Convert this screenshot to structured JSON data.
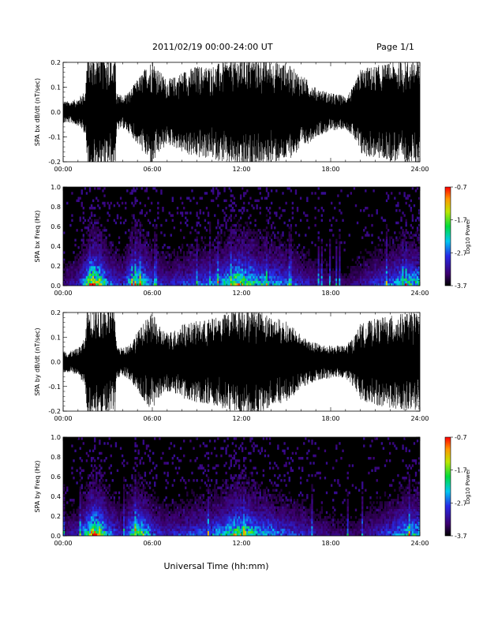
{
  "header": {
    "title": "2011/02/19   00:00-24:00 UT",
    "page": "Page 1/1"
  },
  "footer": {
    "xlabel": "Universal Time (hh:mm)"
  },
  "chart_data": [
    {
      "type": "line",
      "ylabel": "SPA bx dB/dt (nT/sec)",
      "xlabel": "",
      "xlim": [
        "00:00",
        "24:00"
      ],
      "x_ticks": [
        "00:00",
        "06:00",
        "12:00",
        "18:00",
        "24:00"
      ],
      "ylim": [
        -0.2,
        0.2
      ],
      "y_ticks": [
        "-0.2",
        "-0.1",
        "0.0",
        "0.1",
        "0.2"
      ],
      "color": "#000000",
      "envelope": {
        "x_hours": [
          0,
          0.5,
          1,
          1.5,
          1.6,
          2,
          2.5,
          3,
          3.5,
          3.6,
          4,
          4.5,
          5,
          5.5,
          6,
          6.5,
          7,
          7.5,
          8,
          9,
          10,
          11,
          12,
          13,
          14,
          15,
          16,
          17,
          18,
          19,
          19.5,
          20,
          21,
          22,
          23,
          24
        ],
        "amplitude": [
          0.04,
          0.04,
          0.05,
          0.08,
          0.21,
          0.21,
          0.21,
          0.21,
          0.2,
          0.07,
          0.06,
          0.08,
          0.12,
          0.16,
          0.2,
          0.15,
          0.12,
          0.13,
          0.15,
          0.17,
          0.17,
          0.19,
          0.21,
          0.2,
          0.19,
          0.18,
          0.14,
          0.09,
          0.07,
          0.06,
          0.09,
          0.16,
          0.17,
          0.18,
          0.19,
          0.2
        ]
      }
    },
    {
      "type": "heatmap",
      "ylabel": "SPA bx Freq (Hz)",
      "xlim": [
        "00:00",
        "24:00"
      ],
      "x_ticks": [
        "00:00",
        "06:00",
        "12:00",
        "18:00",
        "24:00"
      ],
      "ylim": [
        0.0,
        1.0
      ],
      "y_ticks": [
        "0.0",
        "0.2",
        "0.4",
        "0.6",
        "0.8",
        "1.0"
      ],
      "colorbar": {
        "label": "Log10 Power",
        "ticks": [
          "-0.7",
          "-1.7",
          "-2.7",
          "-3.7"
        ],
        "range": [
          -3.7,
          -0.7
        ]
      },
      "activity": {
        "x_hours": [
          0,
          1,
          1.5,
          2,
          2.5,
          3,
          4,
          4.5,
          5,
          5.5,
          6,
          7,
          8,
          9,
          10,
          11,
          11.5,
          12,
          12.5,
          13,
          14,
          15,
          16,
          17,
          18,
          19,
          20,
          21,
          22,
          23,
          24
        ],
        "level": [
          0.15,
          0.25,
          0.55,
          0.95,
          0.8,
          0.45,
          0.25,
          0.55,
          0.7,
          0.6,
          0.35,
          0.25,
          0.3,
          0.35,
          0.4,
          0.55,
          0.75,
          0.8,
          0.7,
          0.55,
          0.5,
          0.4,
          0.3,
          0.2,
          0.15,
          0.12,
          0.2,
          0.3,
          0.4,
          0.55,
          0.6
        ]
      }
    },
    {
      "type": "line",
      "ylabel": "SPA by dB/dt (nT/sec)",
      "xlabel": "",
      "xlim": [
        "00:00",
        "24:00"
      ],
      "x_ticks": [
        "00:00",
        "06:00",
        "12:00",
        "18:00",
        "24:00"
      ],
      "ylim": [
        -0.2,
        0.2
      ],
      "y_ticks": [
        "-0.2",
        "-0.1",
        "0.0",
        "0.1",
        "0.2"
      ],
      "color": "#000000",
      "envelope": {
        "x_hours": [
          0,
          0.5,
          1,
          1.5,
          1.6,
          2,
          2.5,
          3,
          3.5,
          3.6,
          4,
          4.5,
          5,
          5.5,
          6,
          6.5,
          7,
          7.5,
          8,
          9,
          10,
          11,
          12,
          13,
          14,
          15,
          16,
          17,
          18,
          19,
          19.5,
          20,
          21,
          22,
          23,
          24
        ],
        "amplitude": [
          0.04,
          0.04,
          0.05,
          0.09,
          0.21,
          0.21,
          0.21,
          0.21,
          0.19,
          0.06,
          0.05,
          0.07,
          0.11,
          0.15,
          0.18,
          0.13,
          0.11,
          0.12,
          0.14,
          0.15,
          0.16,
          0.18,
          0.21,
          0.2,
          0.17,
          0.15,
          0.1,
          0.07,
          0.06,
          0.06,
          0.09,
          0.14,
          0.16,
          0.17,
          0.18,
          0.19
        ]
      }
    },
    {
      "type": "heatmap",
      "ylabel": "SPA by Freq (Hz)",
      "xlim": [
        "00:00",
        "24:00"
      ],
      "x_ticks": [
        "00:00",
        "06:00",
        "12:00",
        "18:00",
        "24:00"
      ],
      "ylim": [
        0.0,
        1.0
      ],
      "y_ticks": [
        "0.0",
        "0.2",
        "0.4",
        "0.6",
        "0.8",
        "1.0"
      ],
      "colorbar": {
        "label": "Log10 Power",
        "ticks": [
          "-0.7",
          "-1.7",
          "-2.7",
          "-3.7"
        ],
        "range": [
          -3.7,
          -0.7
        ]
      },
      "activity": {
        "x_hours": [
          0,
          1,
          1.5,
          2,
          2.5,
          3,
          4,
          4.5,
          5,
          5.5,
          6,
          7,
          8,
          9,
          10,
          11,
          11.5,
          12,
          12.5,
          13,
          14,
          15,
          16,
          17,
          18,
          19,
          20,
          21,
          22,
          23,
          24
        ],
        "level": [
          0.15,
          0.25,
          0.55,
          0.9,
          0.8,
          0.45,
          0.25,
          0.5,
          0.7,
          0.6,
          0.35,
          0.25,
          0.3,
          0.35,
          0.4,
          0.55,
          0.7,
          0.75,
          0.65,
          0.55,
          0.45,
          0.35,
          0.3,
          0.2,
          0.15,
          0.12,
          0.15,
          0.25,
          0.35,
          0.5,
          0.55
        ]
      }
    }
  ]
}
